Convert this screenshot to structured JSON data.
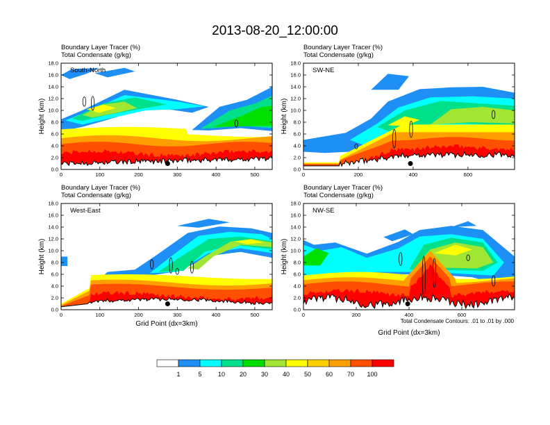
{
  "chart_data": {
    "type": "heatmap",
    "title": "2013-08-20_12:00:00",
    "fields": {
      "shaded": "Boundary Layer Tracer   (%)",
      "contoured": "Total Condensate   (g/kg)"
    },
    "ylabel": "Height (km)",
    "xlabel": "Grid Point (dx=3km)",
    "ylim": [
      0,
      18
    ],
    "yticks": [
      "0.0",
      "2.0",
      "4.0",
      "6.0",
      "8.0",
      "10.0",
      "12.0",
      "14.0",
      "16.0",
      "18.0"
    ],
    "contour_note": "Total Condensate Contours: .01 to .01 by .000",
    "colorbar": {
      "levels": [
        1,
        5,
        10,
        20,
        30,
        40,
        50,
        60,
        70,
        100
      ],
      "labels": [
        "1",
        "5",
        "10",
        "20",
        "30",
        "40",
        "50",
        "60",
        "70",
        "100"
      ],
      "colors": [
        "#ffffff",
        "#1e8ff5",
        "#00ffff",
        "#00e08a",
        "#00e000",
        "#a0e632",
        "#ffff00",
        "#ffd000",
        "#ffa000",
        "#ff5000",
        "#ff0000"
      ]
    },
    "panels": [
      {
        "name": "South-North",
        "xlim": [
          0,
          545
        ],
        "xticks": [
          0,
          100,
          200,
          300,
          400,
          500
        ],
        "marker_x": 275,
        "marker_y": 1.0
      },
      {
        "name": "SW-NE",
        "xlim": [
          0,
          770
        ],
        "xticks": [
          0,
          200,
          400,
          600
        ],
        "marker_x": 390,
        "marker_y": 1.0
      },
      {
        "name": "West-East",
        "xlim": [
          0,
          545
        ],
        "xticks": [
          0,
          100,
          200,
          300,
          400,
          500
        ],
        "marker_x": 275,
        "marker_y": 1.0
      },
      {
        "name": "NW-SE",
        "xlim": [
          0,
          800
        ],
        "xticks": [
          0,
          200,
          400,
          600
        ],
        "marker_x": 395,
        "marker_y": 1.0
      }
    ]
  }
}
